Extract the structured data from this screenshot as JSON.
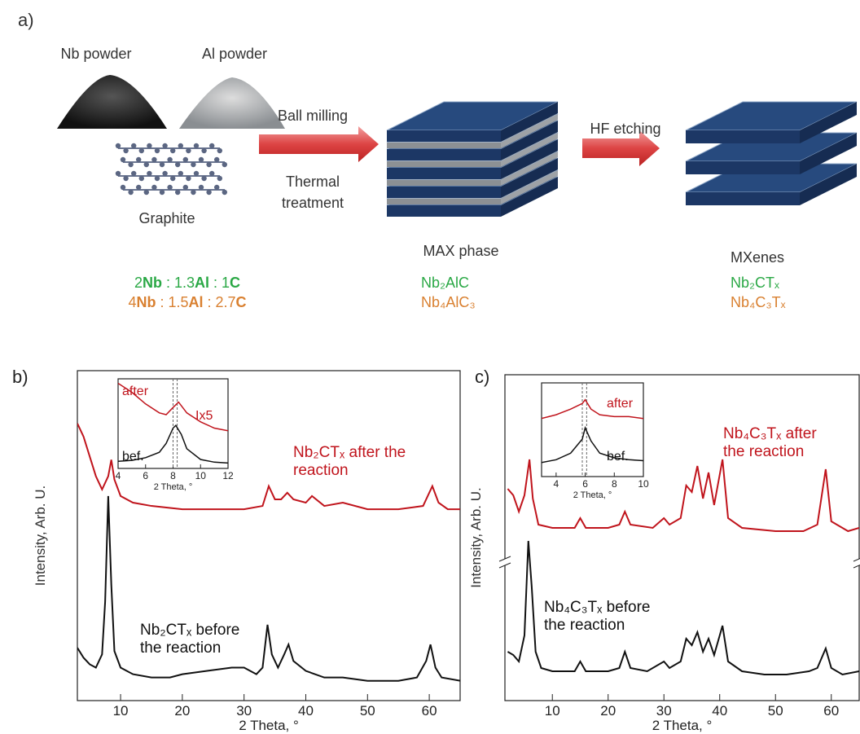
{
  "panel_a": {
    "label": "a)",
    "nb_powder": "Nb powder",
    "al_powder": "Al powder",
    "graphite": "Graphite",
    "step1_top": "Ball milling",
    "step1_bottom": "Thermal treatment",
    "step2": "HF etching",
    "max_phase": "MAX phase",
    "mxenes": "MXenes",
    "ratios": [
      [
        "2",
        "Nb",
        " : 1.3",
        "Al",
        " : 1",
        "C"
      ],
      [
        "4",
        "Nb",
        " : 1.5",
        "Al",
        " : 2.7",
        "C"
      ]
    ],
    "max_formulas": [
      "Nb₂AlC",
      "Nb₄AlC₃"
    ],
    "mxene_formulas": [
      "Nb₂CTₓ",
      "Nb₄C₃Tₓ"
    ],
    "formula_colors": [
      "#2aa845",
      "#d98030"
    ]
  },
  "chart_data": [
    {
      "type": "line",
      "panel_label": "b)",
      "x_label": "2 Theta, °",
      "y_label": "Intensity, Arb. U.",
      "xlim": [
        3,
        65
      ],
      "ylim": [
        0,
        100
      ],
      "xticks": [
        10,
        20,
        30,
        40,
        50,
        60
      ],
      "series": [
        {
          "name": "Nb₂CTₓ after the reaction",
          "color": "#c0141c",
          "x": [
            3,
            4,
            5,
            6,
            7,
            8,
            8.5,
            9,
            10,
            12,
            15,
            20,
            25,
            30,
            33,
            34,
            35,
            36,
            37,
            38,
            40,
            41,
            43,
            46,
            50,
            55,
            59,
            60.5,
            61.5,
            63,
            65
          ],
          "values": [
            84,
            80,
            74,
            68,
            64,
            68,
            73,
            67,
            62,
            60,
            59,
            58,
            58,
            58,
            59,
            65,
            61,
            61,
            63,
            61,
            60,
            62,
            59,
            60,
            58,
            58,
            59,
            65,
            60,
            58,
            58
          ]
        },
        {
          "name": "Nb₂CTₓ before the reaction",
          "color": "#111111",
          "x": [
            3,
            4,
            5,
            6,
            7,
            7.5,
            8,
            8.5,
            9,
            10,
            12,
            15,
            18,
            20,
            24,
            28,
            30,
            32,
            33,
            33.8,
            34.5,
            35.5,
            36.5,
            37.2,
            38,
            40,
            43,
            46,
            50,
            55,
            58,
            59.5,
            60.2,
            61,
            62,
            65
          ],
          "values": [
            16,
            13,
            11,
            10,
            14,
            30,
            62,
            35,
            15,
            10,
            8,
            7,
            7,
            8,
            9,
            10,
            10,
            8,
            10,
            23,
            14,
            10,
            14,
            17,
            12,
            9,
            7,
            7,
            6,
            6,
            7,
            12,
            17,
            10,
            7,
            6
          ]
        }
      ]
    },
    {
      "type": "line",
      "x_label": "2 Theta, °",
      "xlim": [
        4,
        12
      ],
      "ylim": [
        0,
        100
      ],
      "xticks": [
        4,
        6,
        8,
        10,
        12
      ],
      "vlines": [
        8,
        8.3
      ],
      "annotations": [
        "Ix5"
      ],
      "series": [
        {
          "name": "after",
          "color": "#c0141c",
          "x": [
            4,
            5,
            6,
            7,
            7.5,
            8,
            8.4,
            9,
            10,
            11,
            12
          ],
          "values": [
            95,
            85,
            72,
            62,
            60,
            68,
            74,
            62,
            52,
            45,
            42
          ]
        },
        {
          "name": "bef.",
          "color": "#111111",
          "x": [
            4,
            5,
            6,
            7,
            7.5,
            8,
            8.2,
            8.6,
            9,
            10,
            11,
            12
          ],
          "values": [
            8,
            9,
            12,
            18,
            28,
            45,
            48,
            38,
            22,
            10,
            7,
            6
          ]
        }
      ]
    },
    {
      "type": "line",
      "panel_label": "c)",
      "x_label": "2 Theta, °",
      "y_label": "Intensity, Arb. U.",
      "xlim": [
        1.5,
        65
      ],
      "ylim": [
        0,
        100
      ],
      "xticks": [
        10,
        20,
        30,
        40,
        50,
        60
      ],
      "axis_break": true,
      "series": [
        {
          "name": "Nb₄C₃Tₓ after the reaction",
          "color": "#c0141c",
          "x": [
            2,
            3,
            4,
            5,
            5.9,
            6.5,
            7.5,
            10,
            14,
            15,
            16,
            20,
            22,
            23,
            24,
            28,
            30,
            31,
            33,
            34,
            35,
            36,
            37,
            38,
            39,
            40.5,
            41.5,
            44,
            50,
            55,
            57.5,
            59,
            60,
            63,
            65
          ],
          "values": [
            65,
            63,
            58,
            63,
            74,
            62,
            54,
            53,
            53,
            56,
            53,
            53,
            54,
            58,
            54,
            53,
            56,
            54,
            56,
            66,
            64,
            72,
            62,
            70,
            60,
            74,
            56,
            53,
            52,
            52,
            54,
            71,
            55,
            52,
            53
          ]
        },
        {
          "name": "Nb₄C₃Tₓ before the reaction",
          "color": "#111111",
          "x": [
            2,
            3,
            4,
            5,
            5.7,
            6.3,
            7,
            8,
            10,
            14,
            15,
            16,
            20,
            22,
            23,
            24,
            27,
            30,
            31,
            33,
            34,
            35,
            36,
            37,
            38,
            39,
            40.5,
            41.5,
            44,
            48,
            52,
            56,
            57.5,
            59,
            60,
            62,
            65
          ],
          "values": [
            15,
            14,
            12,
            20,
            49,
            35,
            15,
            10,
            9,
            9,
            12,
            9,
            9,
            10,
            15,
            10,
            9,
            12,
            10,
            12,
            19,
            17,
            21,
            15,
            19,
            14,
            23,
            12,
            9,
            8,
            8,
            9,
            10,
            16,
            10,
            8,
            9
          ]
        }
      ]
    },
    {
      "type": "line",
      "x_label": "2 Theta, °",
      "xlim": [
        3,
        10
      ],
      "ylim": [
        0,
        100
      ],
      "xticks": [
        4,
        6,
        8,
        10
      ],
      "vlines": [
        5.8,
        6.1
      ],
      "series": [
        {
          "name": "after",
          "color": "#c0141c",
          "x": [
            3,
            4,
            5,
            5.8,
            6,
            6.4,
            7,
            8,
            9,
            10
          ],
          "values": [
            62,
            66,
            72,
            78,
            82,
            72,
            66,
            64,
            64,
            62
          ]
        },
        {
          "name": "bef.",
          "color": "#111111",
          "x": [
            3,
            4,
            5,
            5.8,
            6,
            6.4,
            7,
            8,
            9,
            10
          ],
          "values": [
            15,
            18,
            25,
            40,
            52,
            38,
            25,
            20,
            18,
            17
          ]
        }
      ]
    }
  ]
}
